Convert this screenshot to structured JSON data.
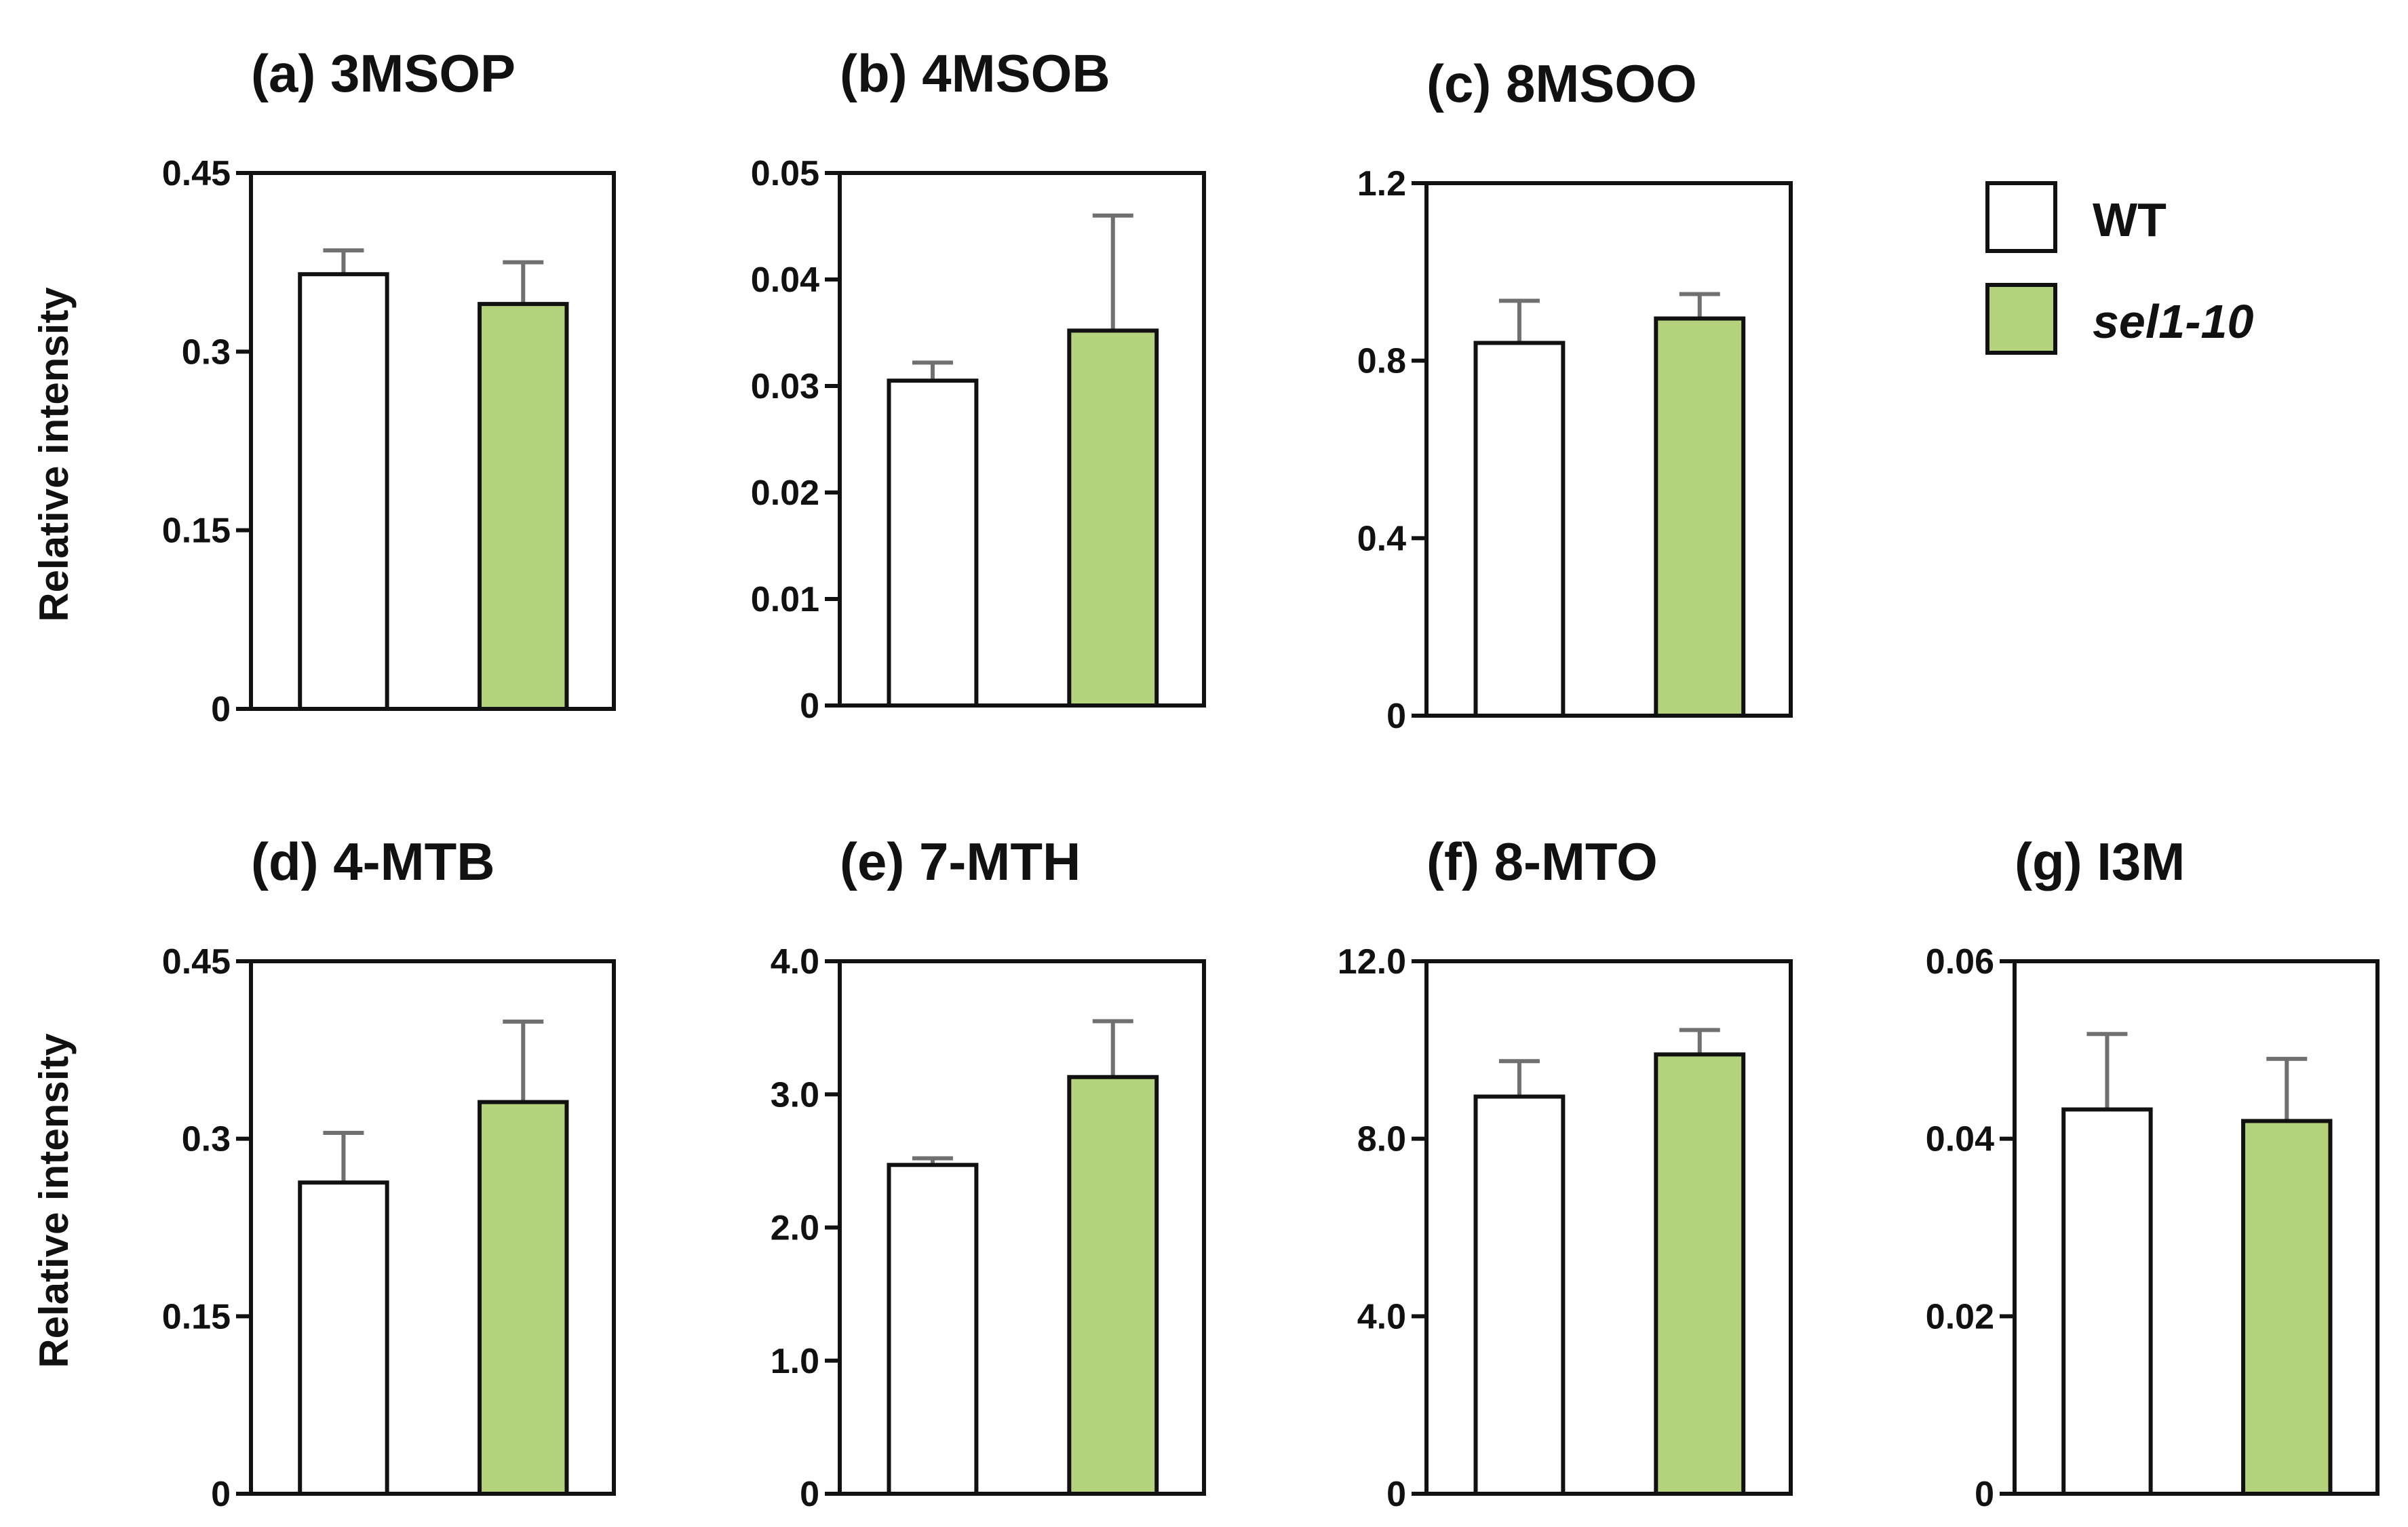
{
  "chart_data": [
    {
      "type": "bar",
      "title": "(a)  3MSOP",
      "ylabel": "Relative intensity",
      "categories": [
        "WT",
        "sel1-10"
      ],
      "values": [
        0.365,
        0.34
      ],
      "errors": [
        0.02,
        0.035
      ],
      "ylim": [
        0,
        0.45
      ],
      "yticks": [
        "0",
        "0.15",
        "0.3",
        "0.45"
      ],
      "ytick_values": [
        0,
        0.15,
        0.3,
        0.45
      ]
    },
    {
      "type": "bar",
      "title": "(b)  4MSOB",
      "ylabel": "",
      "categories": [
        "WT",
        "sel1-10"
      ],
      "values": [
        0.0305,
        0.0352
      ],
      "errors": [
        0.0017,
        0.0108
      ],
      "ylim": [
        0,
        0.05
      ],
      "yticks": [
        "0",
        "0.01",
        "0.02",
        "0.03",
        "0.04",
        "0.05"
      ],
      "ytick_values": [
        0,
        0.01,
        0.02,
        0.03,
        0.04,
        0.05
      ]
    },
    {
      "type": "bar",
      "title": "(c)  8MSOO",
      "ylabel": "",
      "categories": [
        "WT",
        "sel1-10"
      ],
      "values": [
        0.84,
        0.895
      ],
      "errors": [
        0.095,
        0.055
      ],
      "ylim": [
        0,
        1.2
      ],
      "yticks": [
        "0",
        "0.4",
        "0.8",
        "1.2"
      ],
      "ytick_values": [
        0,
        0.4,
        0.8,
        1.2
      ]
    },
    {
      "type": "bar",
      "title": "(d)  4-MTB",
      "ylabel": "Relative intensity",
      "categories": [
        "WT",
        "sel1-10"
      ],
      "values": [
        0.263,
        0.331
      ],
      "errors": [
        0.042,
        0.068
      ],
      "ylim": [
        0,
        0.45
      ],
      "yticks": [
        "0",
        "0.15",
        "0.3",
        "0.45"
      ],
      "ytick_values": [
        0,
        0.15,
        0.3,
        0.45
      ]
    },
    {
      "type": "bar",
      "title": "(e)  7-MTH",
      "ylabel": "",
      "categories": [
        "WT",
        "sel1-10"
      ],
      "values": [
        2.47,
        3.13
      ],
      "errors": [
        0.05,
        0.42
      ],
      "ylim": [
        0,
        4.0
      ],
      "yticks": [
        "0",
        "1.0",
        "2.0",
        "3.0",
        "4.0"
      ],
      "ytick_values": [
        0,
        1,
        2,
        3,
        4
      ]
    },
    {
      "type": "bar",
      "title": "(f)  8-MTO",
      "ylabel": "",
      "categories": [
        "WT",
        "sel1-10"
      ],
      "values": [
        8.95,
        9.9
      ],
      "errors": [
        0.8,
        0.55
      ],
      "ylim": [
        0,
        12.0
      ],
      "yticks": [
        "0",
        "4.0",
        "8.0",
        "12.0"
      ],
      "ytick_values": [
        0,
        4,
        8,
        12
      ]
    },
    {
      "type": "bar",
      "title": "(g)  I3M",
      "ylabel": "",
      "categories": [
        "WT",
        "sel1-10"
      ],
      "values": [
        0.0433,
        0.042
      ],
      "errors": [
        0.0085,
        0.007
      ],
      "ylim": [
        0,
        0.06
      ],
      "yticks": [
        "0",
        "0.02",
        "0.04",
        "0.06"
      ],
      "ytick_values": [
        0,
        0.02,
        0.04,
        0.06
      ]
    }
  ],
  "legend": {
    "entries": [
      {
        "label": "WT",
        "color": "#ffffff"
      },
      {
        "label": "sel1-10",
        "color": "#b5d37c"
      }
    ]
  },
  "colors": {
    "wt": "#ffffff",
    "mutant": "#b5d37c",
    "error_bar": "#707070",
    "axis": "#111111"
  }
}
